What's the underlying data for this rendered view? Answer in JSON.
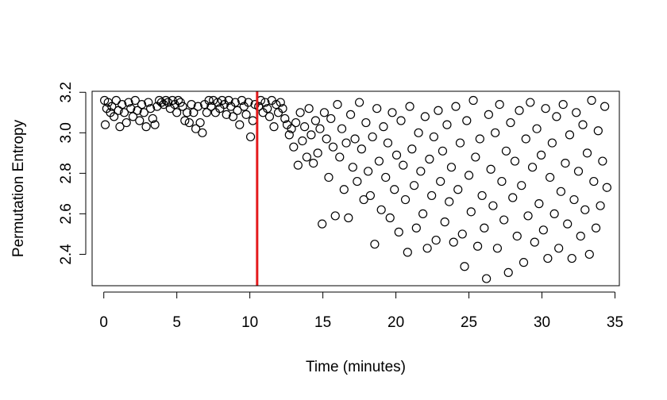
{
  "chart_data": {
    "type": "scatter",
    "title": "",
    "xlabel": "Time (minutes)",
    "ylabel": "Permutation Entropy",
    "xlim": [
      -0.8,
      35.3
    ],
    "ylim": [
      2.245,
      3.205
    ],
    "xticks": [
      0,
      5,
      10,
      15,
      20,
      25,
      30,
      35
    ],
    "xtick_labels": [
      "0",
      "5",
      "10",
      "15",
      "20",
      "25",
      "30",
      "35"
    ],
    "yticks": [
      2.4,
      2.6,
      2.8,
      3.0,
      3.2
    ],
    "ytick_labels": [
      "2.4",
      "2.6",
      "2.8",
      "3.0",
      "3.2"
    ],
    "grid": false,
    "marker": "open-circle",
    "colors": {
      "points": "#000000",
      "vline": "#e41a1c"
    },
    "vline": {
      "x": 10.5,
      "color": "#e41a1c"
    },
    "series": [
      {
        "values": [
          [
            0.05,
            3.16
          ],
          [
            0.1,
            3.04
          ],
          [
            0.2,
            3.12
          ],
          [
            0.3,
            3.15
          ],
          [
            0.45,
            3.1
          ],
          [
            0.55,
            3.13
          ],
          [
            0.7,
            3.08
          ],
          [
            0.85,
            3.16
          ],
          [
            1.0,
            3.11
          ],
          [
            1.1,
            3.03
          ],
          [
            1.25,
            3.14
          ],
          [
            1.4,
            3.1
          ],
          [
            1.55,
            3.05
          ],
          [
            1.7,
            3.15
          ],
          [
            1.85,
            3.12
          ],
          [
            2.0,
            3.08
          ],
          [
            2.15,
            3.16
          ],
          [
            2.3,
            3.11
          ],
          [
            2.45,
            3.06
          ],
          [
            2.6,
            3.14
          ],
          [
            2.75,
            3.1
          ],
          [
            2.9,
            3.03
          ],
          [
            3.05,
            3.15
          ],
          [
            3.2,
            3.12
          ],
          [
            3.35,
            3.07
          ],
          [
            3.5,
            3.04
          ],
          [
            3.65,
            3.13
          ],
          [
            3.8,
            3.16
          ],
          [
            3.95,
            3.15
          ],
          [
            4.1,
            3.14
          ],
          [
            4.25,
            3.16
          ],
          [
            4.4,
            3.15
          ],
          [
            4.55,
            3.12
          ],
          [
            4.7,
            3.16
          ],
          [
            4.85,
            3.14
          ],
          [
            5.0,
            3.1
          ],
          [
            5.1,
            3.16
          ],
          [
            5.25,
            3.15
          ],
          [
            5.4,
            3.13
          ],
          [
            5.55,
            3.06
          ],
          [
            5.7,
            3.1
          ],
          [
            5.85,
            3.05
          ],
          [
            6.0,
            3.14
          ],
          [
            6.15,
            3.1
          ],
          [
            6.3,
            3.02
          ],
          [
            6.45,
            3.13
          ],
          [
            6.6,
            3.05
          ],
          [
            6.75,
            3.0
          ],
          [
            6.9,
            3.14
          ],
          [
            7.05,
            3.1
          ],
          [
            7.2,
            3.16
          ],
          [
            7.35,
            3.13
          ],
          [
            7.5,
            3.16
          ],
          [
            7.65,
            3.1
          ],
          [
            7.8,
            3.15
          ],
          [
            7.95,
            3.12
          ],
          [
            8.1,
            3.16
          ],
          [
            8.25,
            3.14
          ],
          [
            8.4,
            3.09
          ],
          [
            8.55,
            3.16
          ],
          [
            8.7,
            3.13
          ],
          [
            8.85,
            3.08
          ],
          [
            9.0,
            3.15
          ],
          [
            9.15,
            3.11
          ],
          [
            9.3,
            3.04
          ],
          [
            9.45,
            3.16
          ],
          [
            9.6,
            3.13
          ],
          [
            9.75,
            3.09
          ],
          [
            9.9,
            3.15
          ],
          [
            10.05,
            2.98
          ],
          [
            10.2,
            3.06
          ],
          [
            10.35,
            3.14
          ],
          [
            10.6,
            3.13
          ],
          [
            10.75,
            3.16
          ],
          [
            10.9,
            3.1
          ],
          [
            11.05,
            3.15
          ],
          [
            11.2,
            3.12
          ],
          [
            11.35,
            3.08
          ],
          [
            11.5,
            3.16
          ],
          [
            11.65,
            3.03
          ],
          [
            11.8,
            3.14
          ],
          [
            11.95,
            3.1
          ],
          [
            12.1,
            3.15
          ],
          [
            12.25,
            3.12
          ],
          [
            12.4,
            3.07
          ],
          [
            12.55,
            3.04
          ],
          [
            12.7,
            2.99
          ],
          [
            12.85,
            3.02
          ],
          [
            13.0,
            2.93
          ],
          [
            13.15,
            3.05
          ],
          [
            13.3,
            2.84
          ],
          [
            13.45,
            3.1
          ],
          [
            13.6,
            2.96
          ],
          [
            13.75,
            3.03
          ],
          [
            13.9,
            2.88
          ],
          [
            14.05,
            3.12
          ],
          [
            14.2,
            2.99
          ],
          [
            14.35,
            2.85
          ],
          [
            14.5,
            3.06
          ],
          [
            14.65,
            2.9
          ],
          [
            14.8,
            3.02
          ],
          [
            14.95,
            2.55
          ],
          [
            15.1,
            3.1
          ],
          [
            15.25,
            2.97
          ],
          [
            15.4,
            2.78
          ],
          [
            15.55,
            3.07
          ],
          [
            15.7,
            2.93
          ],
          [
            15.85,
            2.59
          ],
          [
            16.0,
            3.14
          ],
          [
            16.15,
            2.88
          ],
          [
            16.3,
            3.02
          ],
          [
            16.45,
            2.72
          ],
          [
            16.6,
            2.95
          ],
          [
            16.75,
            2.58
          ],
          [
            16.9,
            3.09
          ],
          [
            17.05,
            2.83
          ],
          [
            17.2,
            2.97
          ],
          [
            17.35,
            2.76
          ],
          [
            17.5,
            3.15
          ],
          [
            17.65,
            2.92
          ],
          [
            17.8,
            2.67
          ],
          [
            17.95,
            3.05
          ],
          [
            18.1,
            2.81
          ],
          [
            18.25,
            2.69
          ],
          [
            18.4,
            2.98
          ],
          [
            18.55,
            2.45
          ],
          [
            18.7,
            3.12
          ],
          [
            18.85,
            2.86
          ],
          [
            19.0,
            2.62
          ],
          [
            19.15,
            3.03
          ],
          [
            19.3,
            2.78
          ],
          [
            19.45,
            2.95
          ],
          [
            19.6,
            2.58
          ],
          [
            19.75,
            3.1
          ],
          [
            19.9,
            2.72
          ],
          [
            20.05,
            2.89
          ],
          [
            20.2,
            2.51
          ],
          [
            20.35,
            3.06
          ],
          [
            20.5,
            2.84
          ],
          [
            20.65,
            2.67
          ],
          [
            20.8,
            2.41
          ],
          [
            20.95,
            3.13
          ],
          [
            21.1,
            2.92
          ],
          [
            21.25,
            2.74
          ],
          [
            21.4,
            2.53
          ],
          [
            21.55,
            3.0
          ],
          [
            21.7,
            2.81
          ],
          [
            21.85,
            2.6
          ],
          [
            22.0,
            3.08
          ],
          [
            22.15,
            2.43
          ],
          [
            22.3,
            2.87
          ],
          [
            22.45,
            2.69
          ],
          [
            22.6,
            2.98
          ],
          [
            22.75,
            2.47
          ],
          [
            22.9,
            3.11
          ],
          [
            23.05,
            2.76
          ],
          [
            23.2,
            2.91
          ],
          [
            23.35,
            2.56
          ],
          [
            23.5,
            3.04
          ],
          [
            23.65,
            2.66
          ],
          [
            23.8,
            2.83
          ],
          [
            23.95,
            2.46
          ],
          [
            24.1,
            3.13
          ],
          [
            24.25,
            2.72
          ],
          [
            24.4,
            2.95
          ],
          [
            24.55,
            2.5
          ],
          [
            24.7,
            2.34
          ],
          [
            24.85,
            3.06
          ],
          [
            25.0,
            2.79
          ],
          [
            25.15,
            2.61
          ],
          [
            25.3,
            3.16
          ],
          [
            25.45,
            2.88
          ],
          [
            25.6,
            2.44
          ],
          [
            25.75,
            2.97
          ],
          [
            25.9,
            2.69
          ],
          [
            26.05,
            2.53
          ],
          [
            26.2,
            2.28
          ],
          [
            26.35,
            3.09
          ],
          [
            26.5,
            2.82
          ],
          [
            26.65,
            2.64
          ],
          [
            26.8,
            3.0
          ],
          [
            26.95,
            2.43
          ],
          [
            27.1,
            3.14
          ],
          [
            27.25,
            2.76
          ],
          [
            27.4,
            2.57
          ],
          [
            27.55,
            2.91
          ],
          [
            27.7,
            2.31
          ],
          [
            27.85,
            3.05
          ],
          [
            28.0,
            2.68
          ],
          [
            28.15,
            2.86
          ],
          [
            28.3,
            2.49
          ],
          [
            28.45,
            3.11
          ],
          [
            28.6,
            2.74
          ],
          [
            28.75,
            2.36
          ],
          [
            28.9,
            2.97
          ],
          [
            29.05,
            2.59
          ],
          [
            29.2,
            3.15
          ],
          [
            29.35,
            2.83
          ],
          [
            29.5,
            2.46
          ],
          [
            29.65,
            3.02
          ],
          [
            29.8,
            2.65
          ],
          [
            29.95,
            2.89
          ],
          [
            30.1,
            2.52
          ],
          [
            30.25,
            3.12
          ],
          [
            30.4,
            2.38
          ],
          [
            30.55,
            2.78
          ],
          [
            30.7,
            2.95
          ],
          [
            30.85,
            2.6
          ],
          [
            31.0,
            3.08
          ],
          [
            31.15,
            2.43
          ],
          [
            31.3,
            2.71
          ],
          [
            31.45,
            3.14
          ],
          [
            31.6,
            2.85
          ],
          [
            31.75,
            2.55
          ],
          [
            31.9,
            2.99
          ],
          [
            32.05,
            2.38
          ],
          [
            32.2,
            2.67
          ],
          [
            32.35,
            3.1
          ],
          [
            32.5,
            2.81
          ],
          [
            32.65,
            2.49
          ],
          [
            32.8,
            3.04
          ],
          [
            32.95,
            2.62
          ],
          [
            33.1,
            2.9
          ],
          [
            33.25,
            2.4
          ],
          [
            33.4,
            3.16
          ],
          [
            33.55,
            2.76
          ],
          [
            33.7,
            2.53
          ],
          [
            33.85,
            3.01
          ],
          [
            34.0,
            2.64
          ],
          [
            34.15,
            2.86
          ],
          [
            34.3,
            3.13
          ],
          [
            34.45,
            2.73
          ]
        ]
      }
    ]
  }
}
